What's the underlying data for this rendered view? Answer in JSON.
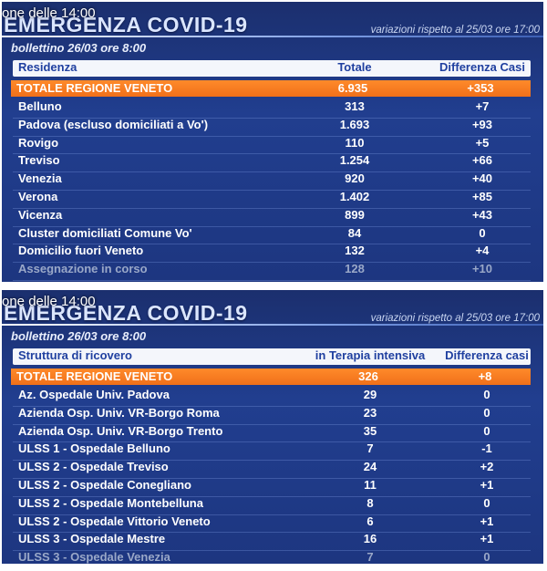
{
  "panel1": {
    "ticker": "one delle 14:00",
    "title": "EMERGENZA COVID-19",
    "subtitle": "variazioni rispetto al 25/03 ore 17:00",
    "bulletin": "bollettino 26/03 ore 8:00",
    "headers": [
      "Residenza",
      "Totale",
      "Differenza Casi"
    ],
    "total": [
      "TOTALE REGIONE VENETO",
      "6.935",
      "+353"
    ],
    "rows": [
      [
        "Belluno",
        "313",
        "+7"
      ],
      [
        "Padova (escluso domiciliati a Vo')",
        "1.693",
        "+93"
      ],
      [
        "Rovigo",
        "110",
        "+5"
      ],
      [
        "Treviso",
        "1.254",
        "+66"
      ],
      [
        "Venezia",
        "920",
        "+40"
      ],
      [
        "Verona",
        "1.402",
        "+85"
      ],
      [
        "Vicenza",
        "899",
        "+43"
      ],
      [
        "Cluster domiciliati Comune Vo'",
        "84",
        "0"
      ],
      [
        "Domicilio fuori Veneto",
        "132",
        "+4"
      ],
      [
        "Assegnazione in corso",
        "128",
        "+10"
      ]
    ]
  },
  "panel2": {
    "ticker": "one delle 14:00",
    "title": "EMERGENZA COVID-19",
    "subtitle": "variazioni rispetto al 25/03 ore 17:00",
    "bulletin": "bollettino 26/03 ore 8:00",
    "headers": [
      "Struttura di ricovero",
      "in Terapia intensiva",
      "Differenza casi"
    ],
    "total": [
      "TOTALE REGIONE VENETO",
      "326",
      "+8"
    ],
    "rows": [
      [
        "Az. Ospedale Univ. Padova",
        "29",
        "0"
      ],
      [
        "Azienda Osp. Univ. VR-Borgo Roma",
        "23",
        "0"
      ],
      [
        "Azienda Osp. Univ. VR-Borgo Trento",
        "35",
        "0"
      ],
      [
        "ULSS 1 - Ospedale Belluno",
        "7",
        "-1"
      ],
      [
        "ULSS 2 - Ospedale Treviso",
        "24",
        "+2"
      ],
      [
        "ULSS 2 - Ospedale Conegliano",
        "11",
        "+1"
      ],
      [
        "ULSS 2 - Ospedale Montebelluna",
        "8",
        "0"
      ],
      [
        "ULSS 2 - Ospedale Vittorio Veneto",
        "6",
        "+1"
      ],
      [
        "ULSS 3 - Ospedale Mestre",
        "16",
        "+1"
      ],
      [
        "ULSS 3 - Ospedale Venezia",
        "7",
        "0"
      ]
    ]
  }
}
